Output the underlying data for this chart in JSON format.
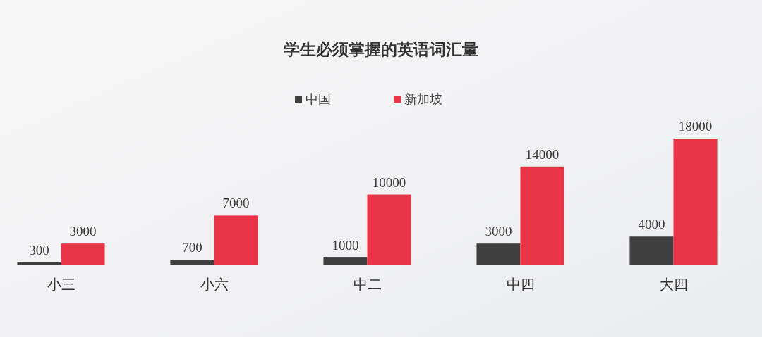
{
  "chart_data": {
    "type": "bar",
    "title": "学生必须掌握的英语词汇量",
    "categories": [
      "小三",
      "小六",
      "中二",
      "中四",
      "大四"
    ],
    "series": [
      {
        "name": "中国",
        "color": "#404040",
        "values": [
          300,
          700,
          1000,
          3000,
          4000
        ]
      },
      {
        "name": "新加坡",
        "color": "#e93346",
        "values": [
          3000,
          7000,
          10000,
          14000,
          18000
        ]
      }
    ],
    "data_labels": true,
    "legend": "top"
  }
}
